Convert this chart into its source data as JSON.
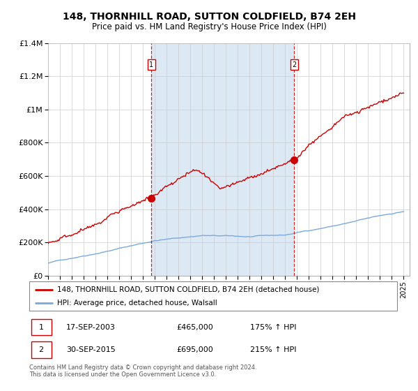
{
  "title": "148, THORNHILL ROAD, SUTTON COLDFIELD, B74 2EH",
  "subtitle": "Price paid vs. HM Land Registry's House Price Index (HPI)",
  "legend_line1": "148, THORNHILL ROAD, SUTTON COLDFIELD, B74 2EH (detached house)",
  "legend_line2": "HPI: Average price, detached house, Walsall",
  "sale1_date": "17-SEP-2003",
  "sale1_price": "£465,000",
  "sale1_hpi": "175% ↑ HPI",
  "sale1_year": 2003.71,
  "sale1_value": 465000,
  "sale2_date": "30-SEP-2015",
  "sale2_price": "£695,000",
  "sale2_hpi": "215% ↑ HPI",
  "sale2_year": 2015.75,
  "sale2_value": 695000,
  "red_line_color": "#cc0000",
  "blue_line_color": "#7aaadd",
  "highlight_color": "#dce9f5",
  "bg_color": "#ffffff",
  "grid_color": "#cccccc",
  "footer_text": "Contains HM Land Registry data © Crown copyright and database right 2024.\nThis data is licensed under the Open Government Licence v3.0.",
  "ylim": [
    0,
    1400000
  ],
  "yticks": [
    0,
    200000,
    400000,
    600000,
    800000,
    1000000,
    1200000,
    1400000
  ],
  "ytick_labels": [
    "£0",
    "£200K",
    "£400K",
    "£600K",
    "£800K",
    "£1M",
    "£1.2M",
    "£1.4M"
  ],
  "xstart": 1995,
  "xend": 2025
}
